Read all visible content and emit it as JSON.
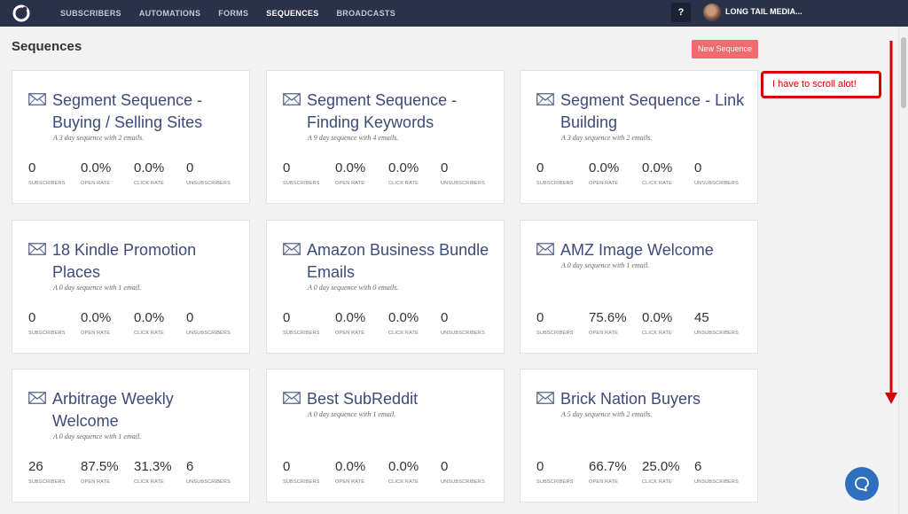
{
  "nav": {
    "items": [
      "SUBSCRIBERS",
      "AUTOMATIONS",
      "FORMS",
      "SEQUENCES",
      "BROADCASTS"
    ],
    "active_index": 3,
    "help_label": "?",
    "account_name": "LONG TAIL MEDIA..."
  },
  "page": {
    "title": "Sequences",
    "new_button": "New Sequence"
  },
  "stat_labels": [
    "SUBSCRIBERS",
    "OPEN RATE",
    "CLICK RATE",
    "UNSUBSCRIBERS"
  ],
  "cards": [
    {
      "title": "Segment Sequence - Buying / Selling Sites",
      "desc": "A 3 day sequence with 2 emails.",
      "subscribers": "0",
      "open_rate": "0.0%",
      "click_rate": "0.0%",
      "unsubscribers": "0"
    },
    {
      "title": "Segment Sequence - Finding Keywords",
      "desc": "A 9 day sequence with 4 emails.",
      "subscribers": "0",
      "open_rate": "0.0%",
      "click_rate": "0.0%",
      "unsubscribers": "0"
    },
    {
      "title": "Segment Sequence - Link Building",
      "desc": "A 3 day sequence with 2 emails.",
      "subscribers": "0",
      "open_rate": "0.0%",
      "click_rate": "0.0%",
      "unsubscribers": "0"
    },
    {
      "title": "18 Kindle Promotion Places",
      "desc": "A 0 day sequence with 1 email.",
      "subscribers": "0",
      "open_rate": "0.0%",
      "click_rate": "0.0%",
      "unsubscribers": "0"
    },
    {
      "title": "Amazon Business Bundle Emails",
      "desc": "A 0 day sequence with 0 emails.",
      "subscribers": "0",
      "open_rate": "0.0%",
      "click_rate": "0.0%",
      "unsubscribers": "0"
    },
    {
      "title": "AMZ Image Welcome",
      "desc": "A 0 day sequence with 1 email.",
      "subscribers": "0",
      "open_rate": "75.6%",
      "click_rate": "0.0%",
      "unsubscribers": "45"
    },
    {
      "title": "Arbitrage Weekly Welcome",
      "desc": "A 0 day sequence with 1 email.",
      "subscribers": "26",
      "open_rate": "87.5%",
      "click_rate": "31.3%",
      "unsubscribers": "6"
    },
    {
      "title": "Best SubReddit",
      "desc": "A 0 day sequence with 1 email.",
      "subscribers": "0",
      "open_rate": "0.0%",
      "click_rate": "0.0%",
      "unsubscribers": "0"
    },
    {
      "title": "Brick Nation Buyers",
      "desc": "A 5 day sequence with 2 emails.",
      "subscribers": "0",
      "open_rate": "66.7%",
      "click_rate": "25.0%",
      "unsubscribers": "6"
    }
  ],
  "annotation": {
    "text": "I have to scroll alot!",
    "color": "#d30000"
  },
  "colors": {
    "topbar": "#2a3249",
    "accent_button": "#f06b6f",
    "card_title": "#3d4a7a",
    "chat_button": "#2f6fbf"
  },
  "icons": [
    "logo-icon",
    "help-icon",
    "avatar",
    "envelope-icon",
    "chat-icon",
    "down-arrow-annotation"
  ]
}
